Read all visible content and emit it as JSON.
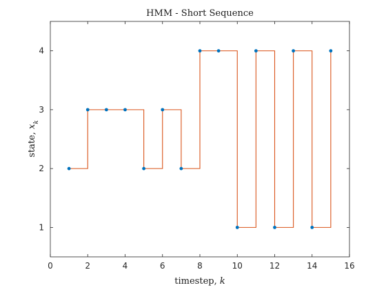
{
  "chart_data": {
    "type": "line",
    "step": "post",
    "title": "HMM - Short Sequence",
    "xlabel": {
      "main": "timestep, ",
      "var": "k"
    },
    "ylabel": {
      "main": "state, ",
      "var": "x",
      "sub": "k"
    },
    "xlim": [
      0,
      16
    ],
    "ylim": [
      0.5,
      4.5
    ],
    "xticks": [
      0,
      2,
      4,
      6,
      8,
      10,
      12,
      14,
      16
    ],
    "yticks": [
      1,
      2,
      3,
      4
    ],
    "grid": false,
    "series": [
      {
        "x": [
          1,
          2,
          3,
          4,
          5,
          6,
          7,
          8,
          9,
          10,
          11,
          12,
          13,
          14,
          15
        ],
        "values": [
          2,
          3,
          3,
          3,
          2,
          3,
          2,
          4,
          4,
          1,
          4,
          1,
          4,
          1,
          4
        ],
        "line_color": "#d95319",
        "marker_color": "#0072bd"
      }
    ]
  }
}
